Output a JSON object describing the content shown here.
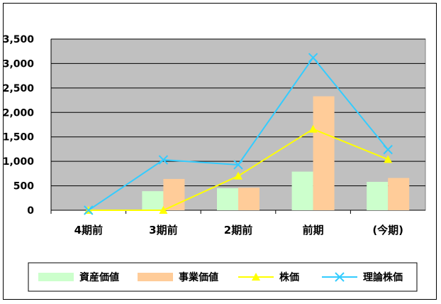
{
  "chart_data": {
    "type": "bar+line",
    "categories": [
      "4期前",
      "3期前",
      "2期前",
      "前期",
      "(今期)"
    ],
    "ylim": [
      0,
      3500
    ],
    "yticks": [
      "0",
      "500",
      "1,000",
      "1,500",
      "2,000",
      "2,500",
      "3,000",
      "3,500"
    ],
    "grid": true,
    "plot_background": "#c0c0c0",
    "legend_position": "bottom",
    "series": [
      {
        "name": "資産価値",
        "kind": "bar",
        "color": "#ccffcc",
        "values": [
          0,
          390,
          450,
          790,
          580
        ]
      },
      {
        "name": "事業価値",
        "kind": "bar",
        "color": "#ffcc99",
        "values": [
          0,
          640,
          460,
          2330,
          660
        ]
      },
      {
        "name": "株価",
        "kind": "line",
        "marker": "triangle",
        "color": "#ffff00",
        "values": [
          0,
          0,
          700,
          1660,
          1040
        ]
      },
      {
        "name": "理論株価",
        "kind": "line",
        "marker": "x",
        "color": "#33ccff",
        "values": [
          0,
          1030,
          930,
          3120,
          1240
        ]
      }
    ]
  }
}
